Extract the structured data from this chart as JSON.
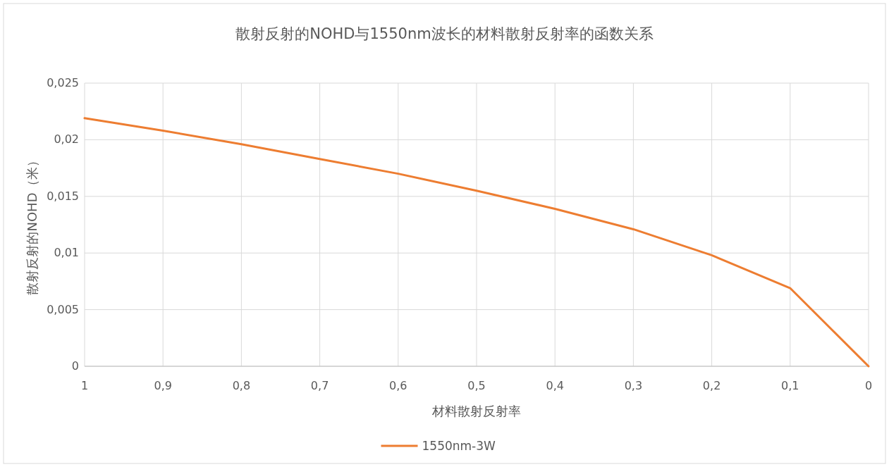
{
  "chart_data": {
    "type": "line",
    "title": "散射反射的NOHD与1550nm波长的材料散射反射率的函数关系",
    "xlabel": "材料散射反射率",
    "ylabel": "散射反射的NOHD（米）",
    "categories": [
      "1",
      "0,9",
      "0,8",
      "0,7",
      "0,6",
      "0,5",
      "0,4",
      "0,3",
      "0,2",
      "0,1",
      "0"
    ],
    "series": [
      {
        "name": "1550nm-3W",
        "color": "#ed7d31",
        "values": [
          0.0219,
          0.0208,
          0.0196,
          0.0183,
          0.017,
          0.0155,
          0.0139,
          0.0121,
          0.0098,
          0.0069,
          0
        ]
      }
    ],
    "ylim": [
      0,
      0.025
    ],
    "yticks": [
      {
        "value": 0,
        "label": "0"
      },
      {
        "value": 0.005,
        "label": "0,005"
      },
      {
        "value": 0.01,
        "label": "0,01"
      },
      {
        "value": 0.015,
        "label": "0,015"
      },
      {
        "value": 0.02,
        "label": "0,02"
      },
      {
        "value": 0.025,
        "label": "0,025"
      }
    ],
    "grid": true,
    "legend": "bottom",
    "marker": "none",
    "line_style": "solid"
  }
}
